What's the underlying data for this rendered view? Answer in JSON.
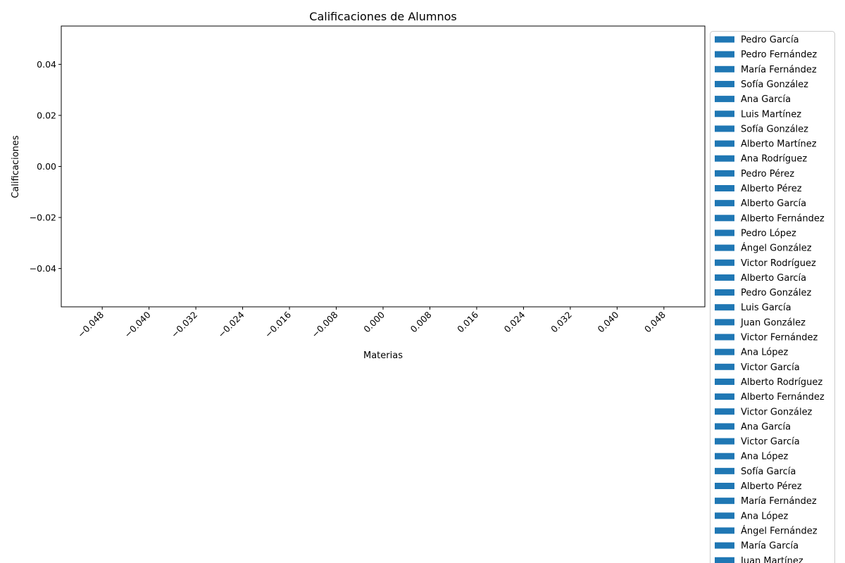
{
  "chart_data": {
    "type": "bar",
    "title": "Calificaciones de Alumnos",
    "xlabel": "Materias",
    "ylabel": "Calificaciones",
    "categories": [],
    "xlim": [
      -0.055,
      0.055
    ],
    "ylim": [
      -0.055,
      0.055
    ],
    "x_ticks": [
      "−0.048",
      "−0.040",
      "−0.032",
      "−0.024",
      "−0.016",
      "−0.008",
      "0.000",
      "0.008",
      "0.016",
      "0.024",
      "0.032",
      "0.040",
      "0.048"
    ],
    "x_tick_values": [
      -0.048,
      -0.04,
      -0.032,
      -0.024,
      -0.016,
      -0.008,
      0.0,
      0.008,
      0.016,
      0.024,
      0.032,
      0.04,
      0.048
    ],
    "y_ticks": [
      "0.04",
      "0.02",
      "0.00",
      "−0.02",
      "−0.04"
    ],
    "y_tick_values": [
      0.04,
      0.02,
      0.0,
      -0.02,
      -0.04
    ],
    "grid": false,
    "legend_position": "outside right",
    "series_color": "#1f77b4",
    "series": [
      {
        "name": "Pedro García",
        "values": []
      },
      {
        "name": "Pedro Fernández",
        "values": []
      },
      {
        "name": "María Fernández",
        "values": []
      },
      {
        "name": "Sofía González",
        "values": []
      },
      {
        "name": "Ana García",
        "values": []
      },
      {
        "name": "Luis Martínez",
        "values": []
      },
      {
        "name": "Sofía González",
        "values": []
      },
      {
        "name": "Alberto Martínez",
        "values": []
      },
      {
        "name": "Ana Rodríguez",
        "values": []
      },
      {
        "name": "Pedro Pérez",
        "values": []
      },
      {
        "name": "Alberto Pérez",
        "values": []
      },
      {
        "name": "Alberto García",
        "values": []
      },
      {
        "name": "Alberto Fernández",
        "values": []
      },
      {
        "name": "Pedro López",
        "values": []
      },
      {
        "name": "Ángel González",
        "values": []
      },
      {
        "name": "Victor Rodríguez",
        "values": []
      },
      {
        "name": "Alberto García",
        "values": []
      },
      {
        "name": "Pedro González",
        "values": []
      },
      {
        "name": "Luis García",
        "values": []
      },
      {
        "name": "Juan González",
        "values": []
      },
      {
        "name": "Victor Fernández",
        "values": []
      },
      {
        "name": "Ana López",
        "values": []
      },
      {
        "name": "Victor García",
        "values": []
      },
      {
        "name": "Alberto Rodríguez",
        "values": []
      },
      {
        "name": "Alberto Fernández",
        "values": []
      },
      {
        "name": "Victor González",
        "values": []
      },
      {
        "name": "Ana García",
        "values": []
      },
      {
        "name": "Victor García",
        "values": []
      },
      {
        "name": "Ana López",
        "values": []
      },
      {
        "name": "Sofía García",
        "values": []
      },
      {
        "name": "Alberto Pérez",
        "values": []
      },
      {
        "name": "María Fernández",
        "values": []
      },
      {
        "name": "Ana López",
        "values": []
      },
      {
        "name": "Ángel Fernández",
        "values": []
      },
      {
        "name": "María García",
        "values": []
      },
      {
        "name": "Juan Martínez",
        "values": []
      }
    ]
  }
}
